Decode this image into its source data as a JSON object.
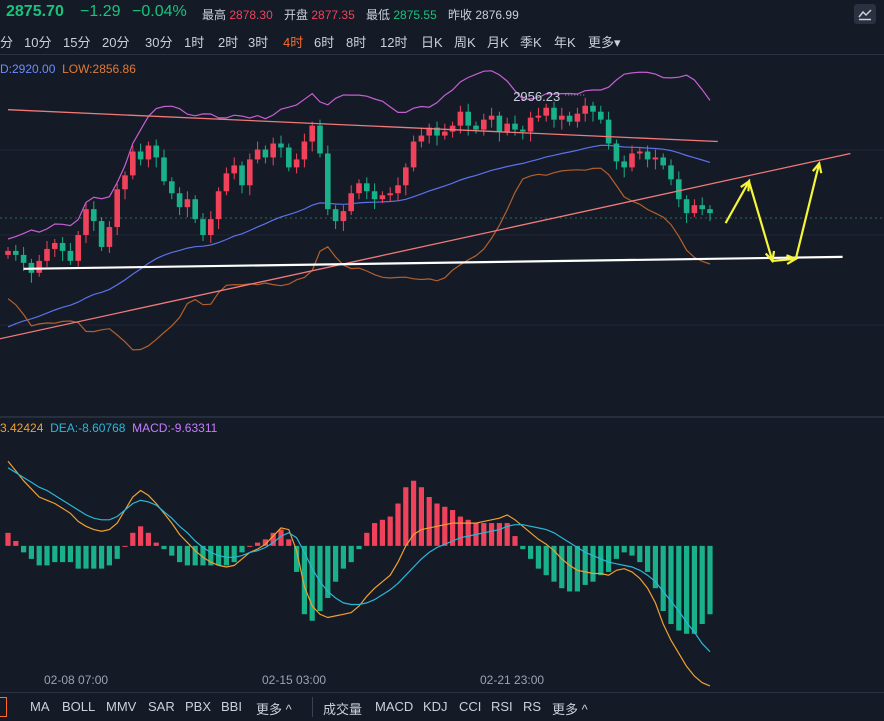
{
  "quote": {
    "price": "2875.70",
    "change": "−1.29",
    "change_pct": "−0.04%",
    "high_label": "最高",
    "high": "2878.30",
    "open_label": "开盘",
    "open": "2877.35",
    "low_label": "最低",
    "low": "2875.55",
    "prev_label": "昨收",
    "prev": "2876.99"
  },
  "periods": [
    {
      "label": "分",
      "active": false
    },
    {
      "label": "10分",
      "active": false
    },
    {
      "label": "15分",
      "active": false
    },
    {
      "label": "20分",
      "active": false
    },
    {
      "label": "30分",
      "active": false
    },
    {
      "label": "1时",
      "active": false
    },
    {
      "label": "2时",
      "active": false
    },
    {
      "label": "3时",
      "active": false
    },
    {
      "label": "4时",
      "active": true
    },
    {
      "label": "6时",
      "active": false
    },
    {
      "label": "8时",
      "active": false
    },
    {
      "label": "12时",
      "active": false
    },
    {
      "label": "日K",
      "active": false
    },
    {
      "label": "周K",
      "active": false
    },
    {
      "label": "月K",
      "active": false
    },
    {
      "label": "季K",
      "active": false
    },
    {
      "label": "年K",
      "active": false
    },
    {
      "label": "更多▾",
      "active": false
    }
  ],
  "legend_top": {
    "high_text": "D:2920.00",
    "low_text": "LOW:2856.86",
    "high_color": "#6f8cff",
    "low_color": "#e07b39"
  },
  "legend_macd": {
    "dif_text": "3.42424",
    "dea_text": "DEA:-8.60768",
    "macd_text": "MACD:-9.63311",
    "dif_color": "#f0a030",
    "dea_color": "#2ab8d8",
    "macd_color": "#c77dff"
  },
  "x_labels": [
    "02-08 07:00",
    "02-15 03:00",
    "02-21 23:00"
  ],
  "bottom_tabs": {
    "main": [
      "MA",
      "BOLL",
      "MMV",
      "SAR",
      "PBX",
      "BBI",
      "更多 ^"
    ],
    "sub": [
      "成交量",
      "MACD",
      "KDJ",
      "CCI",
      "RSI",
      "RS",
      "更多 ^"
    ]
  },
  "chart_data": [
    {
      "type": "candlestick",
      "price_range": [
        2800,
        2980
      ],
      "annotation": "2956.23",
      "up_color": "#f0435b",
      "down_color": "#19b08a",
      "closes": [
        2883,
        2881,
        2877,
        2872,
        2878,
        2884,
        2887,
        2883,
        2878,
        2891,
        2904,
        2898,
        2885,
        2895,
        2914,
        2921,
        2933,
        2929,
        2936,
        2930,
        2918,
        2912,
        2905,
        2909,
        2899,
        2891,
        2899,
        2913,
        2922,
        2926,
        2916,
        2929,
        2934,
        2930,
        2937,
        2935,
        2925,
        2929,
        2938,
        2946,
        2932,
        2904,
        2898,
        2903,
        2912,
        2917,
        2913,
        2909,
        2911,
        2912,
        2916,
        2925,
        2938,
        2941,
        2945,
        2941,
        2943,
        2946,
        2953,
        2946,
        2944,
        2949,
        2951,
        2943,
        2947,
        2944,
        2943,
        2950,
        2951,
        2955,
        2949,
        2951,
        2948,
        2952,
        2956,
        2953,
        2949,
        2937,
        2928,
        2925,
        2932,
        2933,
        2929,
        2930,
        2926,
        2919,
        2909,
        2902,
        2906,
        2904,
        2902
      ],
      "resistance_line": [
        [
          0,
          2954
        ],
        [
          91,
          2938
        ]
      ],
      "rising_trendline": [
        [
          -2,
          2838
        ],
        [
          108,
          2932
        ]
      ],
      "support_line": [
        [
          2,
          2874
        ],
        [
          107,
          2880
        ]
      ],
      "projection_arrows": [
        [
          92,
          2897
        ],
        [
          95,
          2918
        ],
        [
          98,
          2878
        ],
        [
          101,
          2879
        ],
        [
          104,
          2927
        ]
      ]
    },
    {
      "type": "macd",
      "value_range": [
        -75,
        65
      ],
      "dif": [
        52,
        46,
        40,
        35,
        30,
        28,
        26,
        23,
        20,
        15,
        12,
        10,
        9,
        10,
        14,
        22,
        30,
        34,
        31,
        26,
        20,
        14,
        7,
        2,
        -3,
        -7,
        -10,
        -12,
        -13,
        -12,
        -8,
        -4,
        -2,
        1,
        6,
        11,
        10,
        -3,
        -25,
        -37,
        -42,
        -44,
        -43,
        -42,
        -41,
        -37,
        -31,
        -26,
        -22,
        -18,
        -10,
        0,
        7,
        10,
        11,
        12,
        13,
        14,
        14,
        14,
        14,
        15,
        16,
        17,
        19,
        16,
        12,
        8,
        4,
        1,
        -3,
        -8,
        -12,
        -15,
        -16,
        -17,
        -17,
        -18,
        -15,
        -14,
        -16,
        -20,
        -26,
        -35,
        -48,
        -58,
        -66,
        -74,
        -80,
        -84,
        -86
      ],
      "dea": [
        48,
        45,
        42,
        39,
        36,
        34,
        31,
        28,
        25,
        22,
        19,
        17,
        16,
        16,
        18,
        22,
        26,
        28,
        27,
        25,
        21,
        17,
        12,
        8,
        3,
        -1,
        -4,
        -6,
        -7,
        -7,
        -6,
        -4,
        -3,
        -1,
        2,
        6,
        8,
        5,
        -4,
        -14,
        -22,
        -28,
        -32,
        -35,
        -36,
        -36,
        -35,
        -33,
        -30,
        -27,
        -23,
        -18,
        -13,
        -8,
        -4,
        -1,
        1,
        3,
        5,
        6,
        7,
        8,
        9,
        10,
        12,
        13,
        13,
        12,
        11,
        10,
        8,
        5,
        2,
        -1,
        -4,
        -6,
        -8,
        -10,
        -11,
        -12,
        -13,
        -15,
        -18,
        -22,
        -28,
        -34,
        -40,
        -47,
        -53,
        -60,
        -65
      ],
      "hist": [
        8,
        3,
        -4,
        -8,
        -12,
        -12,
        -10,
        -10,
        -10,
        -14,
        -14,
        -14,
        -14,
        -12,
        -8,
        0,
        8,
        12,
        8,
        2,
        -2,
        -6,
        -10,
        -12,
        -12,
        -12,
        -12,
        -12,
        -12,
        -10,
        -4,
        0,
        2,
        4,
        8,
        10,
        4,
        -16,
        -42,
        -46,
        -40,
        -32,
        -22,
        -14,
        -10,
        -2,
        8,
        14,
        16,
        18,
        26,
        36,
        40,
        36,
        30,
        26,
        24,
        22,
        18,
        16,
        14,
        14,
        14,
        14,
        14,
        6,
        -2,
        -8,
        -14,
        -18,
        -22,
        -26,
        -28,
        -28,
        -24,
        -22,
        -18,
        -16,
        -8,
        -4,
        -6,
        -10,
        -16,
        -26,
        -40,
        -48,
        -52,
        -54,
        -54,
        -48,
        -42
      ]
    }
  ]
}
